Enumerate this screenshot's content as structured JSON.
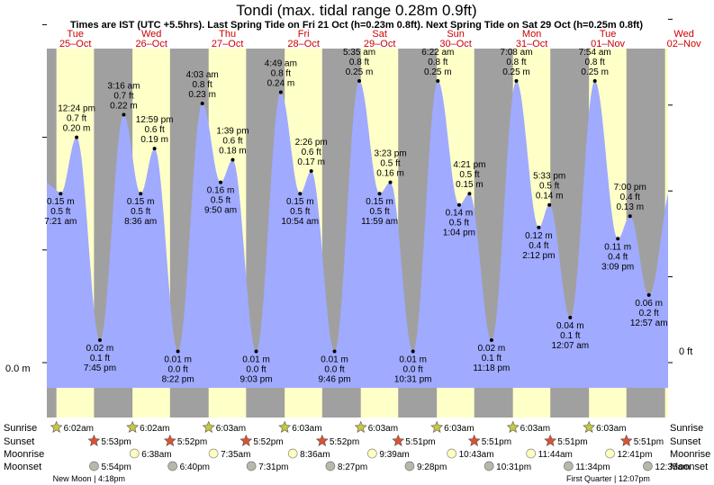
{
  "header": {
    "title": "Tondi (max. tidal range 0.28m 0.9ft)",
    "subtitle": "Times are IST (UTC +5.5hrs). Last Spring Tide on Fri 21 Oct (h=0.23m 0.8ft). Next Spring Tide on Sat 29 Oct (h=0.25m 0.8ft)"
  },
  "colors": {
    "night": "#a0a0a0",
    "day": "#ffffc8",
    "tide_fill": "#a0aaff",
    "day_label": "#cc0000",
    "sunrise": "#c8c840",
    "sunset": "#e05030",
    "moonrise": "#ffffc0",
    "moonset": "#b8b8a8"
  },
  "axes": {
    "left_zero_label": "0.0 m",
    "right_zero_label": "0 ft"
  },
  "row_labels": {
    "sunrise": "Sunrise",
    "sunset": "Sunset",
    "moonrise": "Moonrise",
    "moonset": "Moonset"
  },
  "chart_data": {
    "type": "area",
    "title": "Tondi (max. tidal range 0.28m 0.9ft)",
    "x_unit": "hours from Tue 25-Oct 00:00 IST",
    "y_unit": "m",
    "ylim": [
      -0.04,
      0.27
    ],
    "x_range": [
      3,
      199
    ],
    "days": [
      {
        "dow": "Tue",
        "date": "25–Oct"
      },
      {
        "dow": "Wed",
        "date": "26–Oct"
      },
      {
        "dow": "Thu",
        "date": "27–Oct"
      },
      {
        "dow": "Fri",
        "date": "28–Oct"
      },
      {
        "dow": "Sat",
        "date": "29–Oct"
      },
      {
        "dow": "Sun",
        "date": "30–Oct"
      },
      {
        "dow": "Mon",
        "date": "31–Oct"
      },
      {
        "dow": "Tue",
        "date": "01–Nov"
      },
      {
        "dow": "Wed",
        "date": "02–Nov"
      }
    ],
    "tides": [
      {
        "t": 7.35,
        "h": 0.15,
        "m": "0.15 m",
        "ft": "0.5 ft",
        "time": "7:21 am",
        "type": "low"
      },
      {
        "t": 12.4,
        "h": 0.2,
        "m": "0.20 m",
        "ft": "0.7 ft",
        "time": "12:24 pm",
        "type": "high"
      },
      {
        "t": 19.75,
        "h": 0.02,
        "m": "0.02 m",
        "ft": "0.1 ft",
        "time": "7:45 pm",
        "type": "low"
      },
      {
        "t": 27.27,
        "h": 0.22,
        "m": "0.22 m",
        "ft": "0.7 ft",
        "time": "3:16 am",
        "type": "high"
      },
      {
        "t": 32.6,
        "h": 0.15,
        "m": "0.15 m",
        "ft": "0.5 ft",
        "time": "8:36 am",
        "type": "low"
      },
      {
        "t": 36.98,
        "h": 0.19,
        "m": "0.19 m",
        "ft": "0.6 ft",
        "time": "12:59 pm",
        "type": "high"
      },
      {
        "t": 44.37,
        "h": 0.01,
        "m": "0.01 m",
        "ft": "0.0 ft",
        "time": "8:22 pm",
        "type": "low"
      },
      {
        "t": 52.05,
        "h": 0.23,
        "m": "0.23 m",
        "ft": "0.8 ft",
        "time": "4:03 am",
        "type": "high"
      },
      {
        "t": 57.83,
        "h": 0.16,
        "m": "0.16 m",
        "ft": "0.5 ft",
        "time": "9:50 am",
        "type": "low"
      },
      {
        "t": 61.65,
        "h": 0.18,
        "m": "0.18 m",
        "ft": "0.6 ft",
        "time": "1:39 pm",
        "type": "high"
      },
      {
        "t": 69.05,
        "h": 0.01,
        "m": "0.01 m",
        "ft": "0.0 ft",
        "time": "9:03 pm",
        "type": "low"
      },
      {
        "t": 76.82,
        "h": 0.24,
        "m": "0.24 m",
        "ft": "0.8 ft",
        "time": "4:49 am",
        "type": "high"
      },
      {
        "t": 82.9,
        "h": 0.15,
        "m": "0.15 m",
        "ft": "0.5 ft",
        "time": "10:54 am",
        "type": "low"
      },
      {
        "t": 86.43,
        "h": 0.17,
        "m": "0.17 m",
        "ft": "0.6 ft",
        "time": "2:26 pm",
        "type": "high"
      },
      {
        "t": 93.77,
        "h": 0.01,
        "m": "0.01 m",
        "ft": "0.0 ft",
        "time": "9:46 pm",
        "type": "low"
      },
      {
        "t": 101.58,
        "h": 0.25,
        "m": "0.25 m",
        "ft": "0.8 ft",
        "time": "5:35 am",
        "type": "high"
      },
      {
        "t": 107.98,
        "h": 0.15,
        "m": "0.15 m",
        "ft": "0.5 ft",
        "time": "11:59 am",
        "type": "low"
      },
      {
        "t": 111.38,
        "h": 0.16,
        "m": "0.16 m",
        "ft": "0.5 ft",
        "time": "3:23 pm",
        "type": "high"
      },
      {
        "t": 118.52,
        "h": 0.01,
        "m": "0.01 m",
        "ft": "0.0 ft",
        "time": "10:31 pm",
        "type": "low"
      },
      {
        "t": 126.37,
        "h": 0.25,
        "m": "0.25 m",
        "ft": "0.8 ft",
        "time": "6:22 am",
        "type": "high"
      },
      {
        "t": 133.07,
        "h": 0.14,
        "m": "0.14 m",
        "ft": "0.5 ft",
        "time": "1:04 pm",
        "type": "low"
      },
      {
        "t": 136.35,
        "h": 0.15,
        "m": "0.15 m",
        "ft": "0.5 ft",
        "time": "4:21 pm",
        "type": "high"
      },
      {
        "t": 143.3,
        "h": 0.02,
        "m": "0.02 m",
        "ft": "0.1 ft",
        "time": "11:18 pm",
        "type": "low"
      },
      {
        "t": 151.13,
        "h": 0.25,
        "m": "0.25 m",
        "ft": "0.8 ft",
        "time": "7:08 am",
        "type": "high"
      },
      {
        "t": 158.2,
        "h": 0.12,
        "m": "0.12 m",
        "ft": "0.4 ft",
        "time": "2:12 pm",
        "type": "low"
      },
      {
        "t": 161.55,
        "h": 0.14,
        "m": "0.14 m",
        "ft": "0.5 ft",
        "time": "5:33 pm",
        "type": "high"
      },
      {
        "t": 168.12,
        "h": 0.04,
        "m": "0.04 m",
        "ft": "0.1 ft",
        "time": "12:07 am",
        "type": "low"
      },
      {
        "t": 175.9,
        "h": 0.25,
        "m": "0.25 m",
        "ft": "0.8 ft",
        "time": "7:54 am",
        "type": "high"
      },
      {
        "t": 183.15,
        "h": 0.11,
        "m": "0.11 m",
        "ft": "0.4 ft",
        "time": "3:09 pm",
        "type": "low"
      },
      {
        "t": 187.0,
        "h": 0.13,
        "m": "0.13 m",
        "ft": "0.4 ft",
        "time": "7:00 pm",
        "type": "high"
      },
      {
        "t": 192.95,
        "h": 0.06,
        "m": "0.06 m",
        "ft": "0.2 ft",
        "time": "12:57 am",
        "type": "low"
      }
    ],
    "sunrise": [
      {
        "t": 6.03,
        "label": "6:02am"
      },
      {
        "t": 30.03,
        "label": "6:02am"
      },
      {
        "t": 54.05,
        "label": "6:03am"
      },
      {
        "t": 78.05,
        "label": "6:03am"
      },
      {
        "t": 102.05,
        "label": "6:03am"
      },
      {
        "t": 126.05,
        "label": "6:03am"
      },
      {
        "t": 150.05,
        "label": "6:03am"
      },
      {
        "t": 174.05,
        "label": "6:03am"
      }
    ],
    "sunset": [
      {
        "t": 17.88,
        "label": "5:53pm"
      },
      {
        "t": 41.87,
        "label": "5:52pm"
      },
      {
        "t": 65.87,
        "label": "5:52pm"
      },
      {
        "t": 89.87,
        "label": "5:52pm"
      },
      {
        "t": 113.85,
        "label": "5:51pm"
      },
      {
        "t": 137.85,
        "label": "5:51pm"
      },
      {
        "t": 161.85,
        "label": "5:51pm"
      },
      {
        "t": 185.85,
        "label": "5:51pm"
      }
    ],
    "moonrise": [
      {
        "t": 30.63,
        "label": "6:38am"
      },
      {
        "t": 55.58,
        "label": "7:35am"
      },
      {
        "t": 80.6,
        "label": "8:36am"
      },
      {
        "t": 105.65,
        "label": "9:39am"
      },
      {
        "t": 130.72,
        "label": "10:43am"
      },
      {
        "t": 155.73,
        "label": "11:44am"
      },
      {
        "t": 180.68,
        "label": "12:41pm"
      }
    ],
    "moonset": [
      {
        "t": 17.9,
        "label": "5:54pm"
      },
      {
        "t": 42.67,
        "label": "6:40pm"
      },
      {
        "t": 67.52,
        "label": "7:31pm"
      },
      {
        "t": 92.45,
        "label": "8:27pm"
      },
      {
        "t": 117.47,
        "label": "9:28pm"
      },
      {
        "t": 142.52,
        "label": "10:31pm"
      },
      {
        "t": 167.57,
        "label": "11:34pm"
      },
      {
        "t": 192.58,
        "label": "12:35am"
      }
    ],
    "moon_phases": [
      {
        "t": 16.3,
        "label": "New Moon | 4:18pm"
      },
      {
        "t": 180.1,
        "label": "First Quarter | 12:07pm"
      }
    ]
  }
}
